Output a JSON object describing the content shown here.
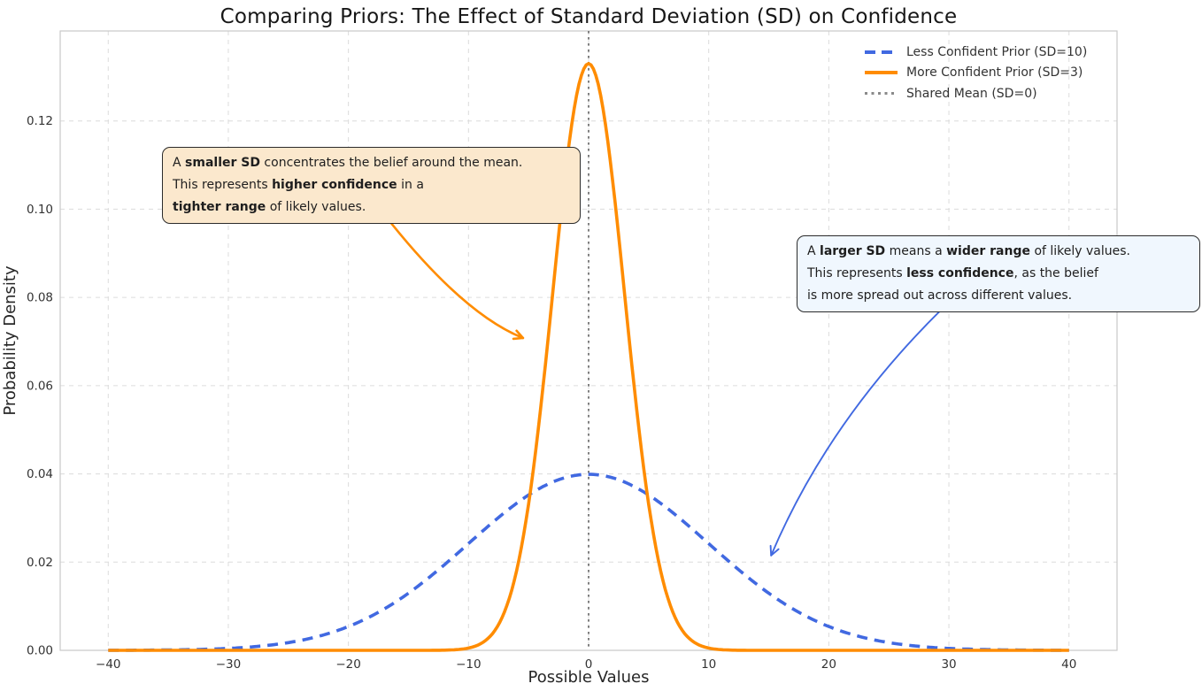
{
  "title": "Comparing Priors: The Effect of Standard Deviation (SD) on Confidence",
  "axes": {
    "xlabel": "Possible Values",
    "ylabel": "Probability Density",
    "xlim": [
      -44,
      44
    ],
    "ylim": [
      0,
      0.1404
    ],
    "xtick_values": [
      -40,
      -30,
      -20,
      -10,
      0,
      10,
      20,
      30,
      40
    ],
    "xtick_labels": [
      "−40",
      "−30",
      "−20",
      "−10",
      "0",
      "10",
      "20",
      "30",
      "40"
    ],
    "ytick_values": [
      0.0,
      0.02,
      0.04,
      0.06,
      0.08,
      0.1,
      0.12
    ],
    "ytick_labels": [
      "0.00",
      "0.02",
      "0.04",
      "0.06",
      "0.08",
      "0.10",
      "0.12"
    ],
    "grid_color": "#dcdcdc",
    "spine_color": "#c9c9c9",
    "tick_color": "#333333"
  },
  "legend": {
    "items": [
      {
        "label": "Less Confident Prior (SD=10)",
        "color": "#4169E1",
        "style": "dashed"
      },
      {
        "label": "More Confident Prior (SD=3)",
        "color": "#FF8C00",
        "style": "solid"
      },
      {
        "label": "Shared Mean (SD=0)",
        "color": "#8a8a8a",
        "style": "dotted"
      }
    ]
  },
  "chart_data": {
    "type": "line",
    "title": "Comparing Priors: The Effect of Standard Deviation (SD) on Confidence",
    "xlabel": "Possible Values",
    "ylabel": "Probability Density",
    "x_range": [
      -40,
      40
    ],
    "xlim": [
      -44,
      44
    ],
    "ylim": [
      0,
      0.1404
    ],
    "grid": true,
    "legend_position": "upper right",
    "series": [
      {
        "name": "Less Confident Prior (SD=10)",
        "distribution": "normal",
        "mean": 0,
        "sd": 10,
        "peak_x": 0,
        "peak_y": 0.0399,
        "color": "#4169E1",
        "line_style": "dashed",
        "line_width": 3.6
      },
      {
        "name": "More Confident Prior (SD=3)",
        "distribution": "normal",
        "mean": 0,
        "sd": 3,
        "peak_x": 0,
        "peak_y": 0.133,
        "color": "#FF8C00",
        "line_style": "solid",
        "line_width": 3.6
      }
    ],
    "vline": {
      "x": 0,
      "color": "#808080",
      "line_style": "dotted",
      "line_width": 2,
      "name": "Shared Mean (SD=0)"
    }
  },
  "annotations": [
    {
      "id": "smaller-sd",
      "bg": "#FBE8CD",
      "lines": [
        [
          {
            "t": "A ",
            "b": 0
          },
          {
            "t": "smaller SD",
            "b": 1
          },
          {
            "t": " concentrates the belief around the mean.",
            "b": 0
          }
        ],
        [
          {
            "t": "This represents ",
            "b": 0
          },
          {
            "t": "higher confidence",
            "b": 1
          },
          {
            "t": " in a",
            "b": 0
          }
        ],
        [
          {
            "t": "tighter range",
            "b": 1
          },
          {
            "t": " of likely values.",
            "b": 0
          }
        ]
      ],
      "arrow": {
        "color": "#FF8C00",
        "width": 2.6,
        "from": [
          -16.4,
          0.0967
        ],
        "ctrl": [
          -10.3,
          0.0761
        ],
        "to": [
          -5.46,
          0.0708
        ]
      }
    },
    {
      "id": "larger-sd",
      "bg": "#F0F7FE",
      "lines": [
        [
          {
            "t": "A ",
            "b": 0
          },
          {
            "t": "larger SD",
            "b": 1
          },
          {
            "t": " means a ",
            "b": 0
          },
          {
            "t": "wider range",
            "b": 1
          },
          {
            "t": " of likely values.",
            "b": 0
          }
        ],
        [
          {
            "t": "This represents ",
            "b": 0
          },
          {
            "t": "less confidence",
            "b": 1
          },
          {
            "t": ", as the belief",
            "b": 0
          }
        ],
        [
          {
            "t": "is more spread out across different values.",
            "b": 0
          }
        ]
      ],
      "arrow": {
        "color": "#4169E1",
        "width": 1.9,
        "from": [
          29.4,
          0.0773
        ],
        "ctrl": [
          19.9,
          0.0518
        ],
        "to": [
          15.2,
          0.0215
        ]
      }
    }
  ]
}
